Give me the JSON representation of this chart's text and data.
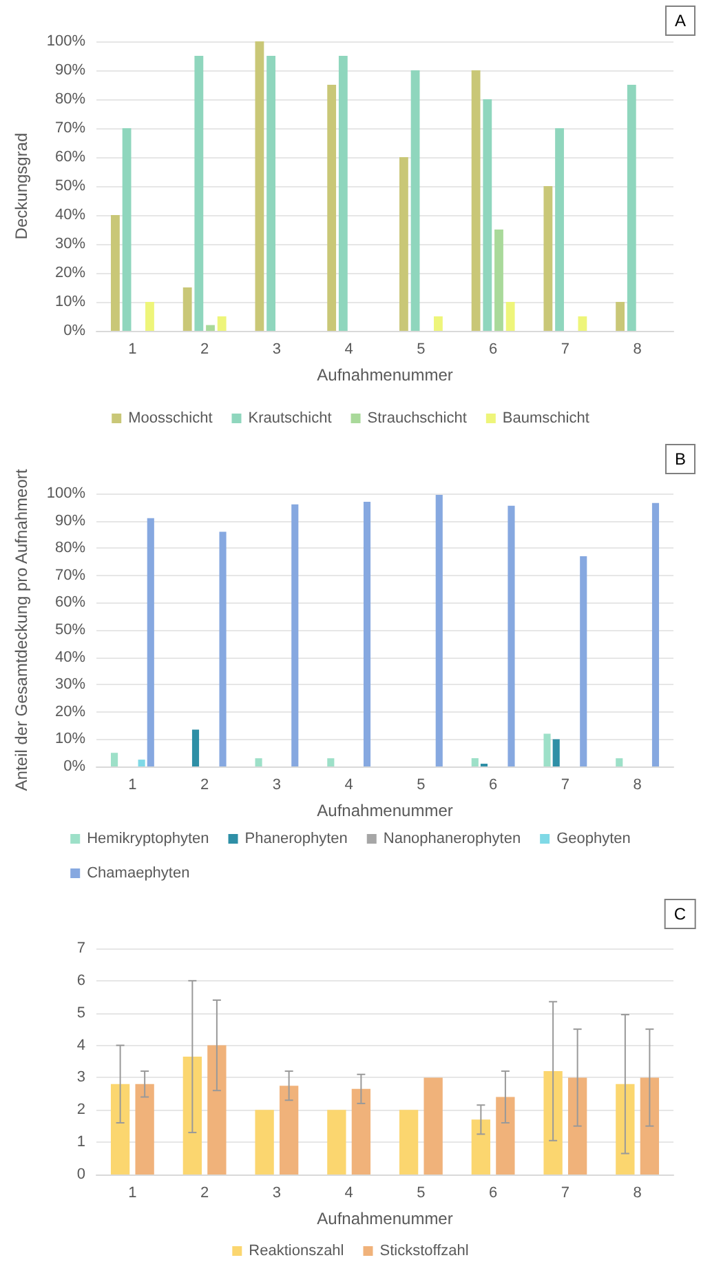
{
  "chart_data": [
    {
      "type": "bar",
      "title": "A",
      "xlabel": "Aufnahmenummer",
      "ylabel": "Deckungsgrad",
      "categories": [
        "1",
        "2",
        "3",
        "4",
        "5",
        "6",
        "7",
        "8"
      ],
      "series": [
        {
          "name": "Moosschicht",
          "color": "#c9c777",
          "values": [
            40,
            15,
            100,
            85,
            60,
            90,
            50,
            10
          ]
        },
        {
          "name": "Krautschicht",
          "color": "#8fd6bd",
          "values": [
            70,
            95,
            95,
            95,
            90,
            80,
            70,
            85
          ]
        },
        {
          "name": "Strauchschicht",
          "color": "#a9d99a",
          "values": [
            0,
            2,
            0,
            0,
            0,
            35,
            0,
            0
          ]
        },
        {
          "name": "Baumschicht",
          "color": "#eef57a",
          "values": [
            10,
            5,
            0,
            0,
            5,
            10,
            5,
            0
          ]
        }
      ],
      "ylim": [
        0,
        100
      ],
      "yticks": [
        {
          "value": 0,
          "label": "0%"
        },
        {
          "value": 10,
          "label": "10%"
        },
        {
          "value": 20,
          "label": "20%"
        },
        {
          "value": 30,
          "label": "30%"
        },
        {
          "value": 40,
          "label": "40%"
        },
        {
          "value": 50,
          "label": "50%"
        },
        {
          "value": 60,
          "label": "60%"
        },
        {
          "value": 70,
          "label": "70%"
        },
        {
          "value": 80,
          "label": "80%"
        },
        {
          "value": 90,
          "label": "90%"
        },
        {
          "value": 100,
          "label": "100%"
        }
      ],
      "grid": "y",
      "legend": "bottom"
    },
    {
      "type": "bar",
      "title": "B",
      "xlabel": "Aufnahmenummer",
      "ylabel": "Anteil der Gesamtdeckung pro Aufnahmeort",
      "categories": [
        "1",
        "2",
        "3",
        "4",
        "5",
        "6",
        "7",
        "8"
      ],
      "series": [
        {
          "name": "Hemikryptophyten",
          "color": "#9de0c8",
          "values": [
            5,
            0,
            3,
            3,
            null,
            3,
            12,
            3
          ]
        },
        {
          "name": "Phanerophyten",
          "color": "#2e8fa6",
          "values": [
            0,
            13.5,
            0,
            0,
            0,
            1,
            10,
            0
          ]
        },
        {
          "name": "Nanophanerophyten",
          "color": "#a6a6a6",
          "values": [
            null,
            0,
            null,
            0,
            0,
            0,
            0,
            null
          ]
        },
        {
          "name": "Geophyten",
          "color": "#7fd9e6",
          "values": [
            2.5,
            0,
            0,
            0,
            0,
            0,
            0,
            0
          ]
        },
        {
          "name": "Chamaephyten",
          "color": "#86a8e0",
          "values": [
            91,
            86,
            96,
            97,
            99.5,
            95.5,
            77,
            96.5
          ]
        }
      ],
      "ylim": [
        0,
        100
      ],
      "yticks": [
        {
          "value": 0,
          "label": "0%"
        },
        {
          "value": 10,
          "label": "10%"
        },
        {
          "value": 20,
          "label": "20%"
        },
        {
          "value": 30,
          "label": "30%"
        },
        {
          "value": 40,
          "label": "40%"
        },
        {
          "value": 50,
          "label": "50%"
        },
        {
          "value": 60,
          "label": "60%"
        },
        {
          "value": 70,
          "label": "70%"
        },
        {
          "value": 80,
          "label": "80%"
        },
        {
          "value": 90,
          "label": "90%"
        },
        {
          "value": 100,
          "label": "100%"
        }
      ],
      "grid": "y",
      "legend": "bottom"
    },
    {
      "type": "bar",
      "title": "C",
      "xlabel": "Aufnahmenummer",
      "categories": [
        "1",
        "2",
        "3",
        "4",
        "5",
        "6",
        "7",
        "8"
      ],
      "series": [
        {
          "name": "Reaktionszahl",
          "color": "#fbd66f",
          "values": [
            2.8,
            3.65,
            2,
            2,
            2,
            1.7,
            3.2,
            2.8
          ],
          "errors": [
            1.2,
            2.35,
            null,
            null,
            null,
            0.45,
            2.15,
            2.15
          ]
        },
        {
          "name": "Stickstoffzahl",
          "color": "#f0b27a",
          "values": [
            2.8,
            4,
            2.75,
            2.65,
            3,
            2.4,
            3,
            3
          ],
          "errors": [
            0.4,
            1.4,
            0.45,
            0.45,
            null,
            0.8,
            1.5,
            1.5
          ]
        }
      ],
      "ylim": [
        0,
        7
      ],
      "yticks": [
        0,
        1,
        2,
        3,
        4,
        5,
        6,
        7
      ],
      "grid": "y",
      "legend": "bottom"
    }
  ]
}
